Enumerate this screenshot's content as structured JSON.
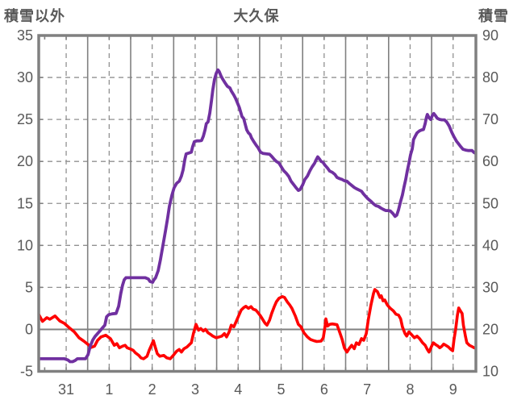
{
  "chart_data": {
    "type": "line",
    "title": "大久保",
    "legend": "none",
    "grid": {
      "vertical_major": "solid per day",
      "vertical_minor": "dashed half day",
      "horizontal": "dashed every 5 (left scale)",
      "zero_line": "solid"
    },
    "x_axis": {
      "tick_labels": [
        "31",
        "1",
        "2",
        "3",
        "4",
        "5",
        "6",
        "7",
        "8",
        "9"
      ],
      "range_days": [
        -0.14,
        10.07
      ],
      "unit": "day"
    },
    "left_axis": {
      "title": "積雪以外",
      "range": [
        -5,
        35
      ],
      "ticks": [
        35,
        30,
        25,
        20,
        15,
        10,
        5,
        0,
        -5
      ]
    },
    "right_axis": {
      "title": "積雪",
      "range": [
        10,
        90
      ],
      "ticks": [
        90,
        80,
        70,
        60,
        50,
        40,
        30,
        20,
        10
      ]
    },
    "colors": {
      "purple_series": "#7030A0",
      "red_series": "#FF0000",
      "grid": "#808080",
      "grid_dashed": "#919191",
      "text": "#595959"
    },
    "series": [
      {
        "name": "積雪",
        "axis": "right",
        "color": "#FF0000_placeholder_ignored",
        "points": []
      },
      {
        "name": "積雪以外",
        "axis": "left",
        "color": "#FF0000",
        "points": [
          [
            -0.14,
            1.8
          ],
          [
            -0.05,
            0.95
          ],
          [
            0.05,
            1.4
          ],
          [
            0.12,
            1.2
          ],
          [
            0.24,
            1.6
          ],
          [
            0.35,
            1.0
          ],
          [
            0.46,
            0.7
          ],
          [
            0.57,
            0.2
          ],
          [
            0.69,
            -0.3
          ],
          [
            0.8,
            -1.0
          ],
          [
            0.91,
            -1.4
          ],
          [
            1.01,
            -1.8
          ],
          [
            1.08,
            -2.15
          ],
          [
            1.16,
            -2.0
          ],
          [
            1.23,
            -1.3
          ],
          [
            1.31,
            -0.9
          ],
          [
            1.42,
            -0.7
          ],
          [
            1.53,
            -1.1
          ],
          [
            1.62,
            -1.9
          ],
          [
            1.68,
            -1.7
          ],
          [
            1.74,
            -2.2
          ],
          [
            1.81,
            -2.0
          ],
          [
            1.87,
            -1.9
          ],
          [
            1.92,
            -2.2
          ],
          [
            2.0,
            -2.35
          ],
          [
            2.06,
            -2.5
          ],
          [
            2.11,
            -2.8
          ],
          [
            2.19,
            -3.1
          ],
          [
            2.24,
            -3.4
          ],
          [
            2.3,
            -3.5
          ],
          [
            2.38,
            -3.2
          ],
          [
            2.43,
            -2.5
          ],
          [
            2.53,
            -1.35
          ],
          [
            2.56,
            -1.9
          ],
          [
            2.62,
            -2.9
          ],
          [
            2.68,
            -3.2
          ],
          [
            2.77,
            -3.1
          ],
          [
            2.84,
            -3.4
          ],
          [
            2.92,
            -3.5
          ],
          [
            2.99,
            -3.1
          ],
          [
            3.07,
            -2.6
          ],
          [
            3.13,
            -2.4
          ],
          [
            3.18,
            -2.7
          ],
          [
            3.24,
            -2.3
          ],
          [
            3.31,
            -2.1
          ],
          [
            3.41,
            -1.6
          ],
          [
            3.46,
            -0.5
          ],
          [
            3.52,
            0.6
          ],
          [
            3.58,
            -0.1
          ],
          [
            3.63,
            0.1
          ],
          [
            3.69,
            -0.2
          ],
          [
            3.74,
            0.0
          ],
          [
            3.8,
            -0.4
          ],
          [
            3.86,
            -0.6
          ],
          [
            3.91,
            -0.8
          ],
          [
            3.99,
            -1.0
          ],
          [
            4.06,
            -0.9
          ],
          [
            4.12,
            -0.8
          ],
          [
            4.18,
            -0.5
          ],
          [
            4.23,
            -0.9
          ],
          [
            4.29,
            -0.3
          ],
          [
            4.34,
            0.5
          ],
          [
            4.4,
            0.3
          ],
          [
            4.46,
            1.0
          ],
          [
            4.51,
            1.6
          ],
          [
            4.57,
            2.3
          ],
          [
            4.63,
            2.6
          ],
          [
            4.68,
            2.75
          ],
          [
            4.74,
            2.5
          ],
          [
            4.8,
            2.7
          ],
          [
            4.85,
            2.4
          ],
          [
            4.91,
            2.3
          ],
          [
            4.96,
            2.0
          ],
          [
            5.02,
            1.6
          ],
          [
            5.08,
            1.1
          ],
          [
            5.13,
            0.7
          ],
          [
            5.17,
            0.5
          ],
          [
            5.23,
            1.1
          ],
          [
            5.28,
            1.9
          ],
          [
            5.34,
            2.7
          ],
          [
            5.39,
            3.3
          ],
          [
            5.45,
            3.7
          ],
          [
            5.53,
            3.9
          ],
          [
            5.58,
            3.8
          ],
          [
            5.64,
            3.3
          ],
          [
            5.7,
            2.9
          ],
          [
            5.75,
            2.5
          ],
          [
            5.83,
            1.6
          ],
          [
            5.9,
            0.6
          ],
          [
            5.96,
            0.3
          ],
          [
            6.03,
            -0.4
          ],
          [
            6.11,
            -0.9
          ],
          [
            6.18,
            -1.2
          ],
          [
            6.26,
            -1.35
          ],
          [
            6.33,
            -1.45
          ],
          [
            6.43,
            -1.4
          ],
          [
            6.48,
            -1.0
          ],
          [
            6.52,
            0.3
          ],
          [
            6.54,
            1.25
          ],
          [
            6.58,
            0.4
          ],
          [
            6.63,
            0.6
          ],
          [
            6.69,
            0.65
          ],
          [
            6.75,
            0.6
          ],
          [
            6.8,
            0.55
          ],
          [
            6.86,
            -0.3
          ],
          [
            6.92,
            -1.2
          ],
          [
            6.97,
            -2.2
          ],
          [
            7.03,
            -2.7
          ],
          [
            7.08,
            -2.3
          ],
          [
            7.14,
            -1.9
          ],
          [
            7.2,
            -2.3
          ],
          [
            7.25,
            -1.6
          ],
          [
            7.31,
            -1.8
          ],
          [
            7.37,
            -1.1
          ],
          [
            7.42,
            -1.3
          ],
          [
            7.48,
            -0.5
          ],
          [
            7.53,
            1.2
          ],
          [
            7.59,
            2.9
          ],
          [
            7.65,
            4.3
          ],
          [
            7.68,
            4.75
          ],
          [
            7.74,
            4.5
          ],
          [
            7.8,
            3.8
          ],
          [
            7.83,
            4.0
          ],
          [
            7.87,
            3.4
          ],
          [
            7.91,
            3.5
          ],
          [
            7.97,
            2.9
          ],
          [
            8.04,
            2.5
          ],
          [
            8.11,
            2.2
          ],
          [
            8.17,
            1.8
          ],
          [
            8.23,
            1.7
          ],
          [
            8.28,
            1.25
          ],
          [
            8.32,
            0.3
          ],
          [
            8.38,
            -0.5
          ],
          [
            8.42,
            -0.8
          ],
          [
            8.47,
            -0.3
          ],
          [
            8.53,
            -0.6
          ],
          [
            8.6,
            -1.0
          ],
          [
            8.66,
            -0.8
          ],
          [
            8.72,
            -1.1
          ],
          [
            8.79,
            -1.6
          ],
          [
            8.85,
            -1.9
          ],
          [
            8.9,
            -2.4
          ],
          [
            8.94,
            -2.7
          ],
          [
            9.0,
            -2.0
          ],
          [
            9.04,
            -1.6
          ],
          [
            9.09,
            -1.8
          ],
          [
            9.15,
            -2.0
          ],
          [
            9.19,
            -2.2
          ],
          [
            9.24,
            -2.0
          ],
          [
            9.28,
            -1.75
          ],
          [
            9.33,
            -1.9
          ],
          [
            9.39,
            -2.1
          ],
          [
            9.45,
            -2.4
          ],
          [
            9.49,
            -2.55
          ],
          [
            9.52,
            -1.25
          ],
          [
            9.56,
            0.0
          ],
          [
            9.6,
            1.7
          ],
          [
            9.63,
            2.55
          ],
          [
            9.67,
            2.2
          ],
          [
            9.71,
            1.9
          ],
          [
            9.74,
            0.5
          ],
          [
            9.79,
            -0.9
          ],
          [
            9.82,
            -1.6
          ],
          [
            9.88,
            -1.9
          ],
          [
            9.94,
            -2.05
          ],
          [
            9.99,
            -2.2
          ],
          [
            10.07,
            -2.3
          ]
        ]
      }
    ],
    "purple_points_note": "series index 0 points filled below",
    "purple_points": [
      [
        -0.14,
        13
      ],
      [
        0.09,
        13
      ],
      [
        0.31,
        13
      ],
      [
        0.46,
        13
      ],
      [
        0.54,
        12.7
      ],
      [
        0.59,
        12.3
      ],
      [
        0.65,
        12.3
      ],
      [
        0.71,
        12.6
      ],
      [
        0.76,
        13
      ],
      [
        0.86,
        13
      ],
      [
        0.95,
        13
      ],
      [
        1.01,
        14
      ],
      [
        1.06,
        16
      ],
      [
        1.12,
        17.5
      ],
      [
        1.17,
        18.3
      ],
      [
        1.23,
        19
      ],
      [
        1.29,
        19.7
      ],
      [
        1.34,
        20.3
      ],
      [
        1.4,
        21
      ],
      [
        1.44,
        23
      ],
      [
        1.49,
        23.5
      ],
      [
        1.57,
        23.7
      ],
      [
        1.66,
        23.8
      ],
      [
        1.72,
        25.5
      ],
      [
        1.77,
        28.5
      ],
      [
        1.81,
        30.5
      ],
      [
        1.85,
        31.8
      ],
      [
        1.89,
        32.3
      ],
      [
        2.0,
        32.3
      ],
      [
        2.11,
        32.3
      ],
      [
        2.23,
        32.3
      ],
      [
        2.34,
        32.3
      ],
      [
        2.41,
        32
      ],
      [
        2.45,
        31.4
      ],
      [
        2.51,
        31.2
      ],
      [
        2.54,
        31.8
      ],
      [
        2.58,
        32.3
      ],
      [
        2.64,
        34
      ],
      [
        2.69,
        36.5
      ],
      [
        2.75,
        40
      ],
      [
        2.81,
        43.5
      ],
      [
        2.86,
        46.5
      ],
      [
        2.9,
        49.3
      ],
      [
        2.96,
        52
      ],
      [
        3.01,
        53.7
      ],
      [
        3.07,
        54.8
      ],
      [
        3.13,
        55.3
      ],
      [
        3.18,
        56.5
      ],
      [
        3.22,
        58
      ],
      [
        3.26,
        60.5
      ],
      [
        3.29,
        61.8
      ],
      [
        3.35,
        62
      ],
      [
        3.41,
        62.2
      ],
      [
        3.44,
        63.5
      ],
      [
        3.48,
        64.7
      ],
      [
        3.54,
        64.9
      ],
      [
        3.59,
        64.9
      ],
      [
        3.65,
        65
      ],
      [
        3.69,
        66
      ],
      [
        3.73,
        67.5
      ],
      [
        3.76,
        69
      ],
      [
        3.8,
        69.4
      ],
      [
        3.84,
        71.5
      ],
      [
        3.88,
        74.5
      ],
      [
        3.91,
        77
      ],
      [
        3.95,
        79.5
      ],
      [
        3.99,
        81
      ],
      [
        4.03,
        81.8
      ],
      [
        4.06,
        81.4
      ],
      [
        4.1,
        80.4
      ],
      [
        4.14,
        79.6
      ],
      [
        4.19,
        78.8
      ],
      [
        4.25,
        77.9
      ],
      [
        4.31,
        77.5
      ],
      [
        4.34,
        76.8
      ],
      [
        4.4,
        75.8
      ],
      [
        4.44,
        75
      ],
      [
        4.5,
        73.5
      ],
      [
        4.53,
        72.8
      ],
      [
        4.59,
        70.7
      ],
      [
        4.63,
        70.2
      ],
      [
        4.66,
        69
      ],
      [
        4.7,
        67.5
      ],
      [
        4.74,
        66.8
      ],
      [
        4.78,
        66.4
      ],
      [
        4.81,
        65.6
      ],
      [
        4.87,
        64.6
      ],
      [
        4.93,
        63.7
      ],
      [
        4.96,
        63.3
      ],
      [
        5.02,
        62.2
      ],
      [
        5.08,
        61.9
      ],
      [
        5.15,
        61.8
      ],
      [
        5.23,
        61.7
      ],
      [
        5.28,
        61.2
      ],
      [
        5.34,
        60.5
      ],
      [
        5.39,
        60
      ],
      [
        5.45,
        59.6
      ],
      [
        5.51,
        58.6
      ],
      [
        5.56,
        57.8
      ],
      [
        5.62,
        57.2
      ],
      [
        5.68,
        56.4
      ],
      [
        5.73,
        55.3
      ],
      [
        5.79,
        54.5
      ],
      [
        5.85,
        53.7
      ],
      [
        5.9,
        53.1
      ],
      [
        5.94,
        53.3
      ],
      [
        6.0,
        54.4
      ],
      [
        6.05,
        55.7
      ],
      [
        6.11,
        56.5
      ],
      [
        6.17,
        57.8
      ],
      [
        6.22,
        58.7
      ],
      [
        6.28,
        59.6
      ],
      [
        6.31,
        60.3
      ],
      [
        6.35,
        61.1
      ],
      [
        6.39,
        60.6
      ],
      [
        6.43,
        60
      ],
      [
        6.47,
        59.8
      ],
      [
        6.52,
        59.1
      ],
      [
        6.58,
        58.4
      ],
      [
        6.63,
        57.7
      ],
      [
        6.69,
        57.4
      ],
      [
        6.75,
        56.9
      ],
      [
        6.8,
        56.2
      ],
      [
        6.86,
        55.9
      ],
      [
        6.92,
        55.7
      ],
      [
        6.97,
        55.4
      ],
      [
        7.03,
        55.3
      ],
      [
        7.08,
        54.8
      ],
      [
        7.14,
        54.3
      ],
      [
        7.2,
        53.8
      ],
      [
        7.25,
        53.5
      ],
      [
        7.31,
        53.2
      ],
      [
        7.37,
        52.9
      ],
      [
        7.42,
        52.2
      ],
      [
        7.48,
        51.5
      ],
      [
        7.53,
        51
      ],
      [
        7.59,
        50.5
      ],
      [
        7.65,
        49.9
      ],
      [
        7.7,
        49.5
      ],
      [
        7.76,
        49.3
      ],
      [
        7.82,
        48.9
      ],
      [
        7.87,
        48.6
      ],
      [
        7.93,
        48.3
      ],
      [
        7.99,
        48.3
      ],
      [
        8.04,
        48.2
      ],
      [
        8.1,
        47.6
      ],
      [
        8.15,
        46.9
      ],
      [
        8.19,
        47.2
      ],
      [
        8.23,
        48.5
      ],
      [
        8.28,
        50.5
      ],
      [
        8.32,
        52
      ],
      [
        8.36,
        54
      ],
      [
        8.4,
        55.8
      ],
      [
        8.43,
        57.5
      ],
      [
        8.47,
        59.5
      ],
      [
        8.51,
        61.6
      ],
      [
        8.55,
        63
      ],
      [
        8.58,
        65.2
      ],
      [
        8.62,
        66
      ],
      [
        8.66,
        66.8
      ],
      [
        8.72,
        67.3
      ],
      [
        8.77,
        67.5
      ],
      [
        8.81,
        67.6
      ],
      [
        8.85,
        69
      ],
      [
        8.88,
        70.5
      ],
      [
        8.9,
        71.2
      ],
      [
        8.94,
        70.4
      ],
      [
        8.98,
        70
      ],
      [
        9.02,
        71
      ],
      [
        9.05,
        71.4
      ],
      [
        9.09,
        70.9
      ],
      [
        9.13,
        70.3
      ],
      [
        9.19,
        70
      ],
      [
        9.24,
        69.9
      ],
      [
        9.3,
        69.9
      ],
      [
        9.35,
        69.4
      ],
      [
        9.41,
        68.4
      ],
      [
        9.47,
        66.9
      ],
      [
        9.52,
        65.9
      ],
      [
        9.58,
        64.8
      ],
      [
        9.62,
        64.3
      ],
      [
        9.67,
        63.6
      ],
      [
        9.73,
        62.9
      ],
      [
        9.79,
        62.7
      ],
      [
        9.86,
        62.6
      ],
      [
        9.94,
        62.6
      ],
      [
        9.99,
        62.1
      ],
      [
        10.05,
        61.8
      ]
    ]
  }
}
